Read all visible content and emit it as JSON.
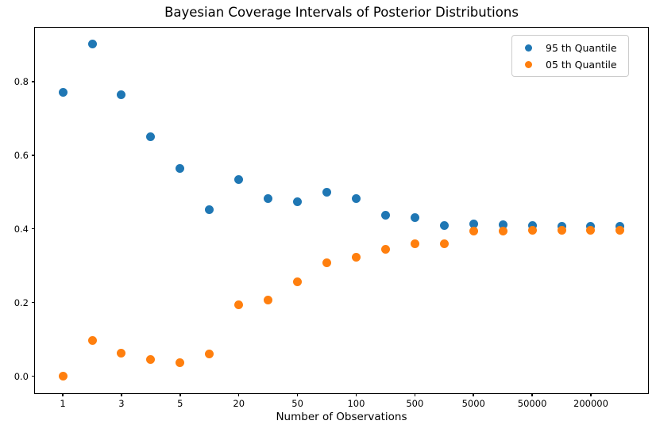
{
  "chart_data": {
    "type": "scatter",
    "title": "Bayesian Coverage Intervals of Posterior Distributions",
    "xlabel": "Number of Observations",
    "ylabel": "",
    "grid": false,
    "legend": {
      "position": "upper-right"
    },
    "x_axis": {
      "scale": "category-index",
      "xlim": [
        -0.95,
        19.95
      ],
      "ticks": [
        {
          "index": 0,
          "label": "1"
        },
        {
          "index": 2,
          "label": "3"
        },
        {
          "index": 4,
          "label": "5"
        },
        {
          "index": 6,
          "label": "20"
        },
        {
          "index": 8,
          "label": "50"
        },
        {
          "index": 10,
          "label": "100"
        },
        {
          "index": 12,
          "label": "500"
        },
        {
          "index": 14,
          "label": "5000"
        },
        {
          "index": 16,
          "label": "50000"
        },
        {
          "index": 18,
          "label": "200000"
        }
      ]
    },
    "y_axis": {
      "ylim": [
        -0.046,
        0.946
      ],
      "ticks": [
        {
          "value": 0.0,
          "label": "0.0"
        },
        {
          "value": 0.2,
          "label": "0.2"
        },
        {
          "value": 0.4,
          "label": "0.4"
        },
        {
          "value": 0.6,
          "label": "0.6"
        },
        {
          "value": 0.8,
          "label": "0.8"
        }
      ]
    },
    "series": [
      {
        "name": "95 th Quantile",
        "color": "#1f77b4",
        "marker": "circle",
        "x_index": [
          0,
          1,
          2,
          3,
          4,
          5,
          6,
          7,
          8,
          9,
          10,
          11,
          12,
          13,
          14,
          15,
          16,
          17,
          18,
          19
        ],
        "values": [
          0.771,
          0.902,
          0.765,
          0.65,
          0.563,
          0.452,
          0.534,
          0.482,
          0.474,
          0.499,
          0.482,
          0.437,
          0.43,
          0.41,
          0.414,
          0.412,
          0.409,
          0.408,
          0.407,
          0.408
        ]
      },
      {
        "name": "05 th Quantile",
        "color": "#ff7f0e",
        "marker": "circle",
        "x_index": [
          0,
          1,
          2,
          3,
          4,
          5,
          6,
          7,
          8,
          9,
          10,
          11,
          12,
          13,
          14,
          15,
          16,
          17,
          18,
          19
        ],
        "values": [
          0.001,
          0.097,
          0.062,
          0.045,
          0.037,
          0.06,
          0.195,
          0.207,
          0.256,
          0.307,
          0.322,
          0.344,
          0.359,
          0.36,
          0.393,
          0.394,
          0.397,
          0.397,
          0.397,
          0.396
        ]
      }
    ]
  }
}
